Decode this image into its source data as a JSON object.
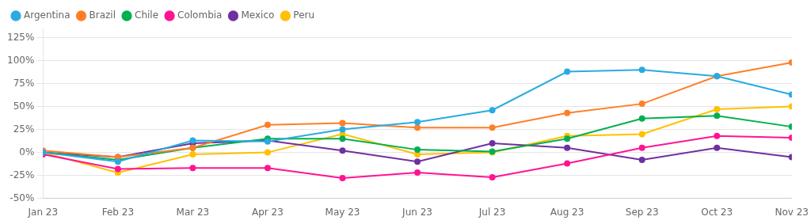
{
  "chart_data": {
    "type": "line",
    "categories": [
      "Jan 23",
      "Feb 23",
      "Mar 23",
      "Apr 23",
      "May 23",
      "Jun 23",
      "Jul 23",
      "Aug 23",
      "Sep 23",
      "Oct 23",
      "Nov 23"
    ],
    "series": [
      {
        "name": "Argentina",
        "color": "#29ABE2",
        "values": [
          0,
          -10,
          13,
          12,
          25,
          33,
          46,
          88,
          90,
          83,
          63
        ]
      },
      {
        "name": "Brazil",
        "color": "#FF7F27",
        "values": [
          2,
          -5,
          5,
          30,
          32,
          27,
          27,
          43,
          53,
          83,
          98
        ]
      },
      {
        "name": "Chile",
        "color": "#00B050",
        "values": [
          0,
          -8,
          5,
          15,
          15,
          3,
          1,
          15,
          37,
          40,
          28
        ]
      },
      {
        "name": "Colombia",
        "color": "#FF1493",
        "values": [
          -2,
          -18,
          -17,
          -17,
          -28,
          -22,
          -27,
          -12,
          5,
          18,
          16
        ]
      },
      {
        "name": "Mexico",
        "color": "#7030A0",
        "values": [
          0,
          -5,
          10,
          13,
          2,
          -10,
          10,
          5,
          -8,
          5,
          -5
        ]
      },
      {
        "name": "Peru",
        "color": "#FFC000",
        "values": [
          0,
          -22,
          -2,
          0,
          20,
          -2,
          0,
          18,
          20,
          47,
          50
        ]
      }
    ],
    "ylim": [
      -50,
      135
    ],
    "yticks": [
      {
        "value": -50,
        "label": "-50%"
      },
      {
        "value": -25,
        "label": "-25%"
      },
      {
        "value": 0,
        "label": "0%"
      },
      {
        "value": 25,
        "label": "25%"
      },
      {
        "value": 50,
        "label": "50%"
      },
      {
        "value": 75,
        "label": "75%"
      },
      {
        "value": 100,
        "label": "100%"
      },
      {
        "value": 125,
        "label": "125%"
      }
    ],
    "grid": true,
    "legend": "upper left",
    "marker": "circle"
  }
}
